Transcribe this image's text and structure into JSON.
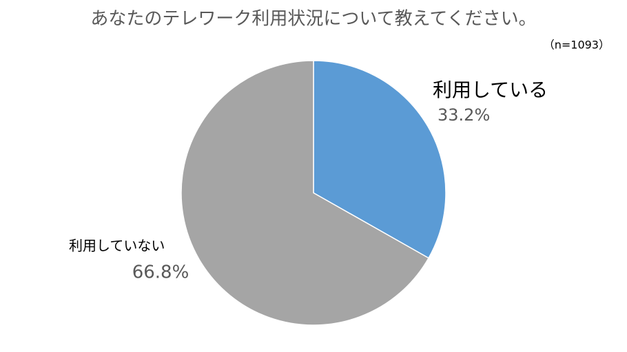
{
  "chart_data": {
    "type": "pie",
    "title": "あなたのテレワーク利用状況について教えてください。",
    "subtitle": "（n=1093）",
    "categories": [
      "利用している",
      "利用していない"
    ],
    "values": [
      33.2,
      66.8
    ],
    "value_labels": [
      "33.2%",
      "66.8%"
    ],
    "colors": [
      "#5b9bd5",
      "#a5a5a5"
    ]
  }
}
